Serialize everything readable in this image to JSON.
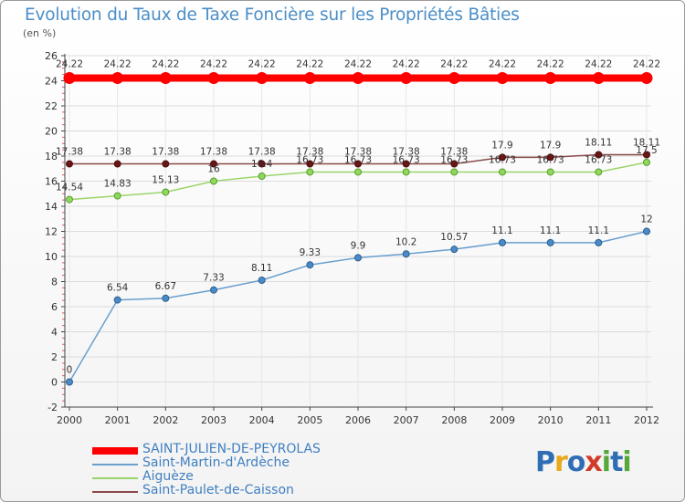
{
  "title": "Evolution du Taux de Taxe Foncière sur les Propriétés Bâties",
  "unit_label": "(en %)",
  "logo": {
    "text": "Proxiti",
    "letters": [
      "P",
      "r",
      "o",
      "x",
      "i",
      "t",
      "i"
    ],
    "colors": [
      "#2f6db5",
      "#e8a91a",
      "#2f6db5",
      "#d23a2a",
      "#56a83a",
      "#2f6db5",
      "#56a83a"
    ]
  },
  "chart_data": {
    "type": "line",
    "title": "Evolution du Taux de Taxe Foncière sur les Propriétés Bâties",
    "ylabel": "(en %)",
    "xlabel": "",
    "x": [
      "2000",
      "2001",
      "2002",
      "2003",
      "2004",
      "2005",
      "2006",
      "2007",
      "2008",
      "2009",
      "2010",
      "2011",
      "2012"
    ],
    "ylim": [
      -2,
      26
    ],
    "yticks": [
      -2,
      0,
      2,
      4,
      6,
      8,
      10,
      12,
      14,
      16,
      18,
      20,
      22,
      24,
      26
    ],
    "grid": true,
    "legend_position": "bottom",
    "series": [
      {
        "name": "SAINT-JULIEN-DE-PEYROLAS",
        "color": "#ff0000",
        "values": [
          24.22,
          24.22,
          24.22,
          24.22,
          24.22,
          24.22,
          24.22,
          24.22,
          24.22,
          24.22,
          24.22,
          24.22,
          24.22
        ],
        "labels": [
          "24.22",
          "24.22",
          "24.22",
          "24.22",
          "24.22",
          "24.22",
          "24.22",
          "24.22",
          "24.22",
          "24.22",
          "24.22",
          "24.22",
          "24.22"
        ]
      },
      {
        "name": "Saint-Martin-d'Ardèche",
        "color": "#6a9fce",
        "values": [
          0,
          6.54,
          6.67,
          7.33,
          8.11,
          9.33,
          9.9,
          10.2,
          10.57,
          11.1,
          11.1,
          11.1,
          12
        ],
        "labels": [
          "0",
          "6.54",
          "6.67",
          "7.33",
          "8.11",
          "9.33",
          "9.9",
          "10.2",
          "10.57",
          "11.1",
          "11.1",
          "11.1",
          "12"
        ]
      },
      {
        "name": "Aiguèze",
        "color": "#9ad56b",
        "values": [
          14.54,
          14.83,
          15.13,
          16,
          16.4,
          16.73,
          16.73,
          16.73,
          16.73,
          16.73,
          16.73,
          16.73,
          17.5
        ],
        "labels": [
          "14.54",
          "14.83",
          "15.13",
          "16",
          "16.4",
          "16.73",
          "16.73",
          "16.73",
          "16.73",
          "16.73",
          "16.73",
          "16.73",
          "17.5"
        ]
      },
      {
        "name": "Saint-Paulet-de-Caisson",
        "color": "#8b4a4a",
        "values": [
          17.38,
          17.38,
          17.38,
          17.38,
          17.38,
          17.38,
          17.38,
          17.38,
          17.38,
          17.9,
          17.9,
          18.11,
          18.11
        ],
        "labels": [
          "17.38",
          "17.38",
          "17.38",
          "17.38",
          "17.38",
          "17.38",
          "17.38",
          "17.38",
          "17.38",
          "17.9",
          "17.9",
          "18.11",
          "18.11"
        ]
      }
    ]
  }
}
